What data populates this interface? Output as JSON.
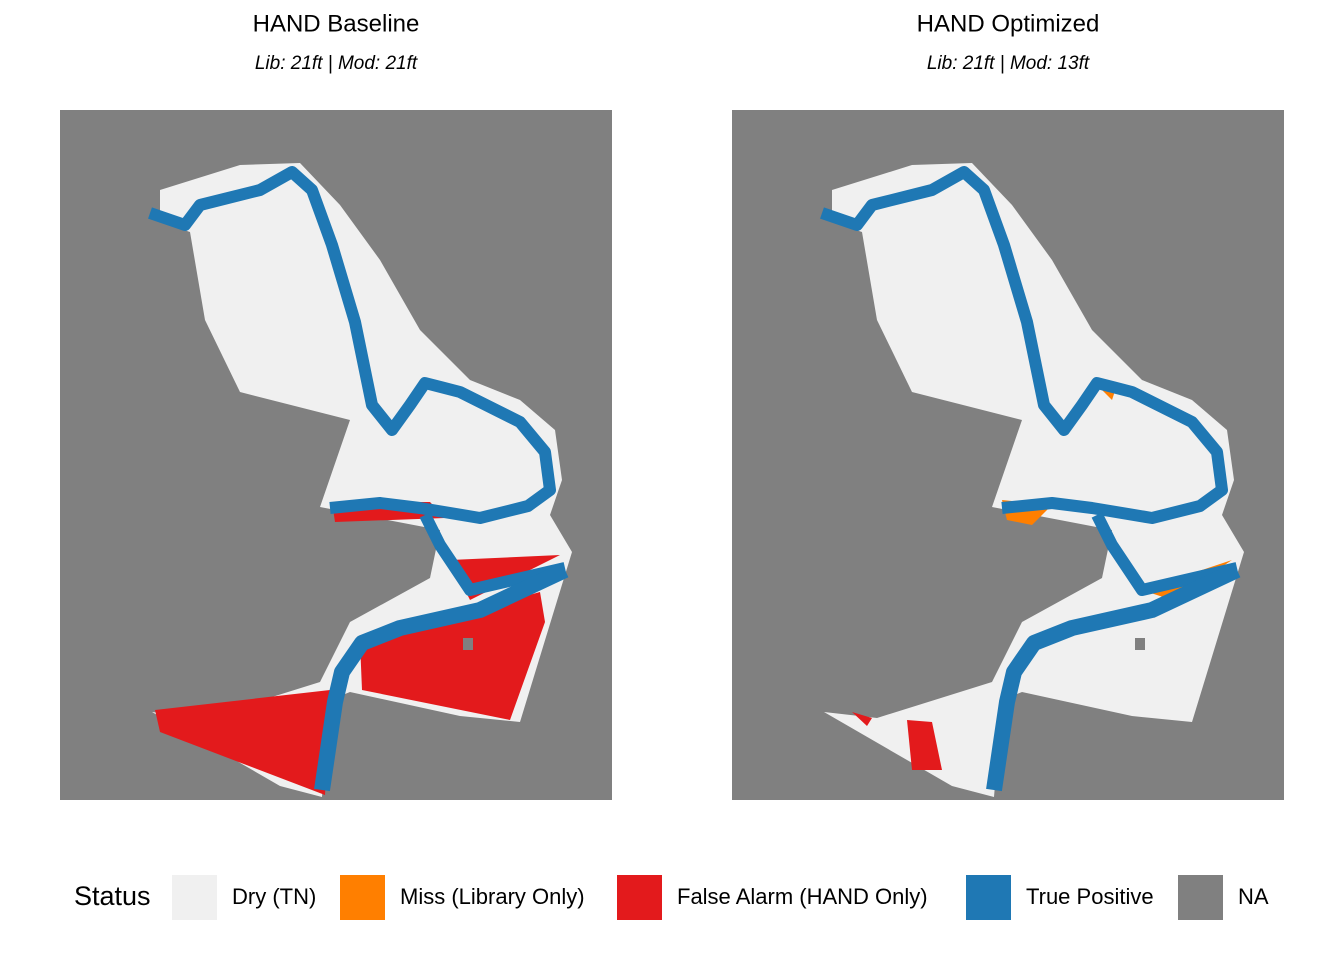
{
  "panels": [
    {
      "title": "HAND Baseline",
      "subtitle": "Lib: 21ft | Mod: 21ft"
    },
    {
      "title": "HAND Optimized",
      "subtitle": "Lib: 21ft | Mod: 13ft"
    }
  ],
  "legend": {
    "title": "Status",
    "items": [
      {
        "label": "Dry (TN)",
        "color": "#f0f0f0"
      },
      {
        "label": "Miss (Library Only)",
        "color": "#ff7f00"
      },
      {
        "label": "False Alarm (HAND Only)",
        "color": "#e31a1c"
      },
      {
        "label": "True Positive",
        "color": "#1f78b4"
      },
      {
        "label": "NA",
        "color": "#808080"
      }
    ]
  }
}
